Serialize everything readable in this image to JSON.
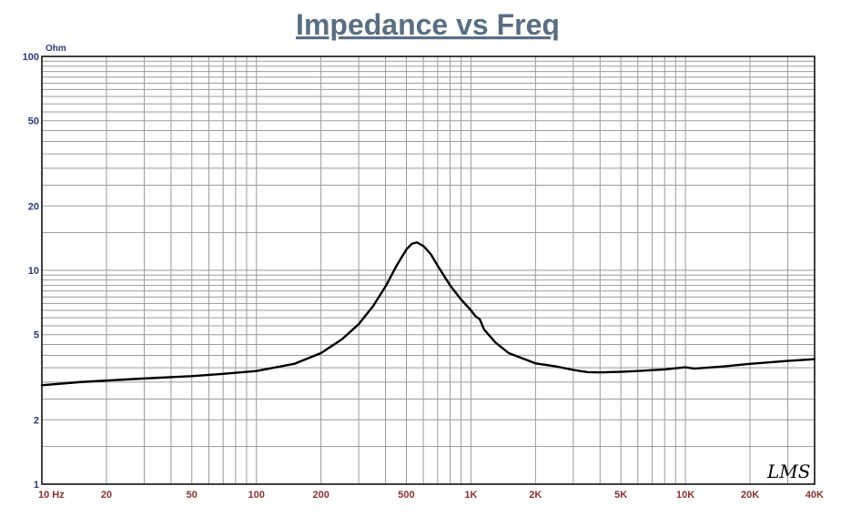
{
  "chart_data": {
    "type": "line",
    "title": "Impedance vs Freq",
    "ylabel": "Ohm",
    "xlabel": "",
    "xscale": "log",
    "yscale": "log",
    "xlim": [
      10,
      40000
    ],
    "ylim": [
      1,
      100
    ],
    "grid": true,
    "x_tick_labels": [
      {
        "v": 10,
        "t": "10  Hz"
      },
      {
        "v": 20,
        "t": "20"
      },
      {
        "v": 50,
        "t": "50"
      },
      {
        "v": 100,
        "t": "100"
      },
      {
        "v": 200,
        "t": "200"
      },
      {
        "v": 500,
        "t": "500"
      },
      {
        "v": 1000,
        "t": "1K"
      },
      {
        "v": 2000,
        "t": "2K"
      },
      {
        "v": 5000,
        "t": "5K"
      },
      {
        "v": 10000,
        "t": "10K"
      },
      {
        "v": 20000,
        "t": "20K"
      },
      {
        "v": 40000,
        "t": "40K"
      }
    ],
    "y_tick_labels": [
      {
        "v": 1,
        "t": "1"
      },
      {
        "v": 2,
        "t": "2"
      },
      {
        "v": 5,
        "t": "5"
      },
      {
        "v": 10,
        "t": "10"
      },
      {
        "v": 20,
        "t": "20"
      },
      {
        "v": 50,
        "t": "50"
      },
      {
        "v": 100,
        "t": "100"
      }
    ],
    "watermark": "LMS",
    "series": [
      {
        "x": [
          10,
          15,
          20,
          30,
          50,
          70,
          100,
          150,
          200,
          250,
          300,
          350,
          400,
          450,
          500,
          530,
          560,
          600,
          650,
          700,
          800,
          900,
          1000,
          1050,
          1100,
          1150,
          1300,
          1500,
          2000,
          2500,
          3000,
          3500,
          4000,
          5000,
          6000,
          8000,
          10000,
          11000,
          15000,
          20000,
          30000,
          40000
        ],
        "y": [
          2.9,
          3.0,
          3.05,
          3.12,
          3.2,
          3.28,
          3.38,
          3.65,
          4.1,
          4.75,
          5.6,
          6.8,
          8.4,
          10.5,
          12.5,
          13.3,
          13.5,
          13.0,
          11.9,
          10.5,
          8.5,
          7.3,
          6.5,
          6.1,
          5.9,
          5.3,
          4.6,
          4.1,
          3.67,
          3.55,
          3.42,
          3.34,
          3.33,
          3.35,
          3.38,
          3.44,
          3.52,
          3.47,
          3.55,
          3.65,
          3.77,
          3.84
        ],
        "color": "#000000"
      }
    ]
  },
  "colors": {
    "title": "#5a6e82",
    "tick_labels": "#8b3030",
    "unit_label": "#2a3a7a",
    "grid": "#9a9a9a",
    "curve": "#000000"
  }
}
